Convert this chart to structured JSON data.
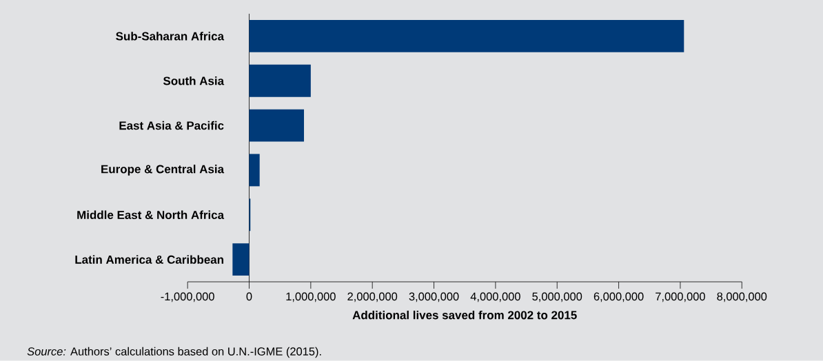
{
  "chart_data": {
    "type": "bar",
    "orientation": "horizontal",
    "categories": [
      "Sub-Saharan Africa",
      "South Asia",
      "East Asia & Pacific",
      "Europe & Central Asia",
      "Middle East & North Africa",
      "Latin America & Caribbean"
    ],
    "values": [
      7060000,
      1000000,
      890000,
      170000,
      20000,
      -270000
    ],
    "color": "#003a78",
    "xlim": [
      -1000000,
      8000000
    ],
    "xticks": [
      {
        "value": -1000000,
        "label": "-1,000,000"
      },
      0,
      {
        "value": 1000000,
        "label": "1,000,000"
      },
      {
        "value": 2000000,
        "label": "2,000,000"
      },
      {
        "value": 3000000,
        "label": "3,000,000"
      },
      {
        "value": 4000000,
        "label": "4,000,000"
      },
      {
        "value": 5000000,
        "label": "5,000,000"
      },
      {
        "value": 6000000,
        "label": "6,000,000"
      },
      {
        "value": 7000000,
        "label": "7,000,000"
      },
      {
        "value": 8000000,
        "label": "8,000,000"
      }
    ],
    "xlabel": "Additional lives saved from 2002 to 2015",
    "annotations": [
      "*Source:* Authors’ calculations based on U.N.-IGME (2015)."
    ]
  }
}
